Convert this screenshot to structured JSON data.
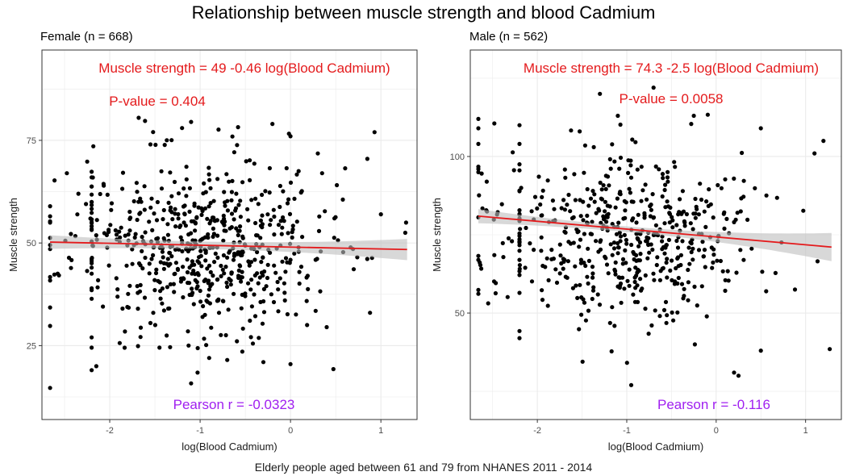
{
  "title": "Relationship between muscle strength and blood Cadmium",
  "caption": "Elderly people aged between 61 and 79 from NHANES 2011 - 2014",
  "colors": {
    "point": "#000000",
    "fit_line": "#e41a1c",
    "confidence_band": "#bebebe",
    "grid": "#ebebeb",
    "equation": "#e41a1c",
    "pearson": "#a020f0"
  },
  "chart_data": [
    {
      "type": "scatter",
      "panel_title": "Female (n = 668)",
      "xlabel": "log(Blood Cadmium)",
      "ylabel": "Muscle strength",
      "xlim": [
        -2.75,
        1.4
      ],
      "ylim": [
        7,
        97
      ],
      "x_ticks": [
        -2,
        -1,
        0,
        1
      ],
      "x_tick_labels": [
        "-2",
        "-1",
        "0",
        "1"
      ],
      "y_ticks": [
        25,
        50,
        75
      ],
      "y_tick_labels": [
        "25",
        "50",
        "75"
      ],
      "grid": true,
      "fit": {
        "intercept": 49,
        "slope": -0.46,
        "x_range": [
          -2.66,
          1.29
        ],
        "ci_at_ends": [
          2.2,
          2.6
        ]
      },
      "equation": "Muscle strength =  49 -0.46 log(Blood Cadmium)",
      "p_value": "P-value = 0.404",
      "pearson": "Pearson r =  -0.0323",
      "point_cloud": {
        "n": 668,
        "x_center": -0.95,
        "x_sd": 0.72,
        "y_center": 49,
        "y_sd": 10.5,
        "x_min": -2.66,
        "x_max": 1.29,
        "y_min": 15,
        "y_max": 80,
        "seed": 11
      },
      "points": [
        [
          -2.66,
          14.7
        ],
        [
          -2.66,
          29.8
        ],
        [
          -2.66,
          41.7
        ],
        [
          -2.66,
          49.5
        ],
        [
          -2.66,
          56.5
        ],
        [
          -2.2,
          24.5
        ],
        [
          -2.2,
          27
        ],
        [
          -2.2,
          38.5
        ],
        [
          -2.2,
          44
        ],
        [
          -2.2,
          60
        ],
        [
          -2.2,
          66
        ],
        [
          -1.68,
          80.5
        ],
        [
          -1.55,
          74
        ],
        [
          -1.55,
          30.5
        ],
        [
          -1.45,
          24.5
        ],
        [
          -1.2,
          78
        ],
        [
          -1.1,
          79.5
        ],
        [
          -1.1,
          15.8
        ],
        [
          -0.9,
          22
        ],
        [
          -0.7,
          21.5
        ],
        [
          -0.3,
          21
        ],
        [
          -0.2,
          79
        ],
        [
          0.0,
          76
        ],
        [
          0.0,
          20.5
        ],
        [
          0.35,
          67
        ],
        [
          0.4,
          29.5
        ],
        [
          0.85,
          70.5
        ],
        [
          0.93,
          77
        ],
        [
          0.88,
          33
        ],
        [
          1.27,
          52.5
        ],
        [
          1.0,
          57
        ],
        [
          -0.05,
          46.3
        ],
        [
          -1.4,
          58
        ],
        [
          -0.6,
          62
        ],
        [
          -0.8,
          36
        ]
      ]
    },
    {
      "type": "scatter",
      "panel_title": "Male (n = 562)",
      "xlabel": "log(Blood Cadmium)",
      "ylabel": "Muscle strength",
      "xlim": [
        -2.75,
        1.4
      ],
      "ylim": [
        16,
        134
      ],
      "x_ticks": [
        -2,
        -1,
        0,
        1
      ],
      "x_tick_labels": [
        "-2",
        "-1",
        "0",
        "1"
      ],
      "y_ticks": [
        50,
        100
      ],
      "y_tick_labels": [
        "50",
        "100"
      ],
      "grid": true,
      "fit": {
        "intercept": 74.3,
        "slope": -2.5,
        "x_range": [
          -2.66,
          1.29
        ],
        "ci_at_ends": [
          3.5,
          4.5
        ]
      },
      "equation": "Muscle strength =  74.3 -2.5 log(Blood Cadmium)",
      "p_value": "P-value = 0.0058",
      "pearson": "Pearson r =  -0.116",
      "point_cloud": {
        "n": 562,
        "x_center": -1.0,
        "x_sd": 0.72,
        "y_center": 75,
        "y_sd": 13.5,
        "x_min": -2.66,
        "x_max": 1.29,
        "y_min": 28,
        "y_max": 120,
        "seed": 29
      },
      "points": [
        [
          -2.66,
          112
        ],
        [
          -2.66,
          109
        ],
        [
          -2.66,
          104
        ],
        [
          -2.66,
          96
        ],
        [
          -2.66,
          95
        ],
        [
          -2.66,
          67
        ],
        [
          -2.2,
          110
        ],
        [
          -2.2,
          104
        ],
        [
          -2.2,
          42
        ],
        [
          -1.3,
          120
        ],
        [
          -1.1,
          113
        ],
        [
          -0.95,
          27
        ],
        [
          -0.25,
          113
        ],
        [
          0.25,
          30
        ],
        [
          0.2,
          31
        ],
        [
          0.5,
          109
        ],
        [
          0.5,
          38
        ],
        [
          1.2,
          105
        ],
        [
          1.27,
          38.5
        ],
        [
          1.1,
          101
        ],
        [
          -1.95,
          87
        ],
        [
          -0.7,
          122
        ]
      ]
    }
  ]
}
